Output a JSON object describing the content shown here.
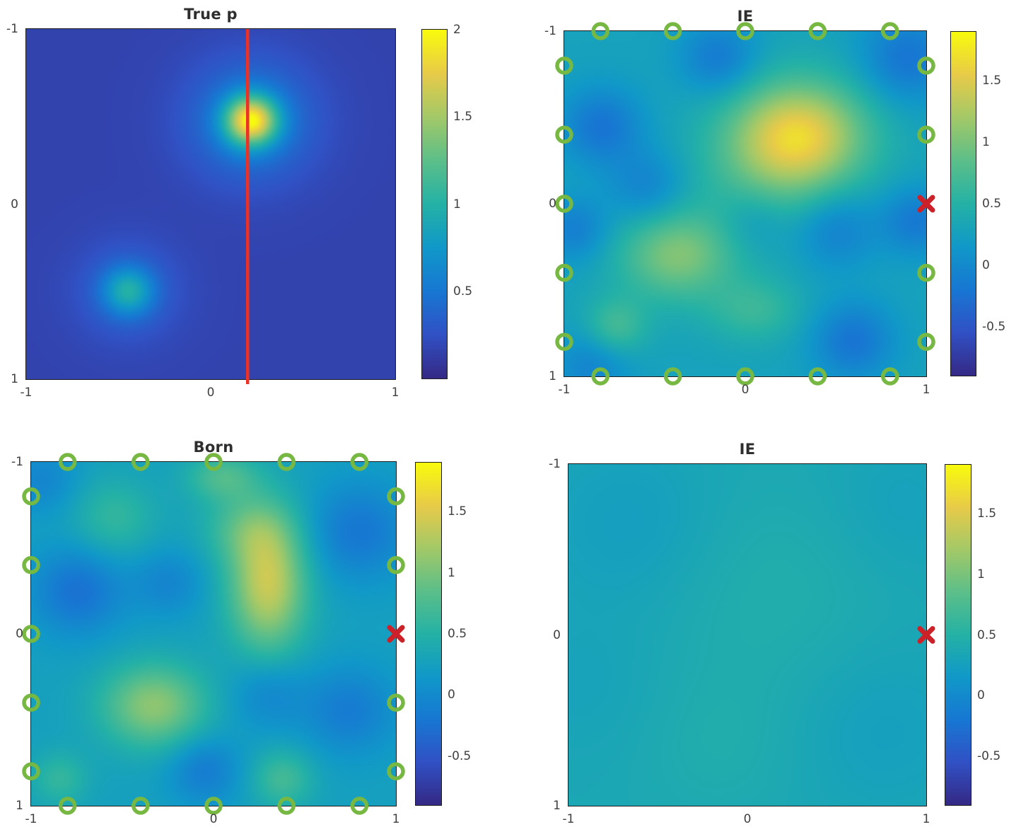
{
  "figure": {
    "background_color": "#ffffff",
    "text_color": "#3f3f3f",
    "title_color": "#2e2e2e"
  },
  "colormap": {
    "name": "parula-like",
    "stops": [
      [
        0.0,
        "#352a87"
      ],
      [
        0.125,
        "#3152c5"
      ],
      [
        0.25,
        "#1878d3"
      ],
      [
        0.375,
        "#1199c9"
      ],
      [
        0.5,
        "#25b2a6"
      ],
      [
        0.625,
        "#5cbf8a"
      ],
      [
        0.75,
        "#a3c969"
      ],
      [
        0.875,
        "#e8cb4a"
      ],
      [
        1.0,
        "#f9fb0e"
      ]
    ]
  },
  "markers": {
    "sensor_color": "#77b843",
    "source_color": "#cc2128",
    "line_color": "#ec3125"
  },
  "chart_data": [
    {
      "type": "heatmap",
      "title": "True p",
      "x_range": [
        -1,
        1
      ],
      "y_range_top_to_bottom": [
        -1,
        1
      ],
      "x_tick_labels": [
        "-1",
        "0",
        "1"
      ],
      "y_tick_labels": [
        "-1",
        "0",
        "1"
      ],
      "value_range": [
        0,
        2
      ],
      "colorbar_ticks": [
        {
          "label": "2",
          "value": 2
        },
        {
          "label": "1.5",
          "value": 1.5
        },
        {
          "label": "1",
          "value": 1
        },
        {
          "label": "0.5",
          "value": 0.5
        }
      ],
      "background_value": 0.16,
      "blobs": [
        {
          "x": 0.22,
          "y": -0.48,
          "s": 0.1,
          "amp": 1.45
        },
        {
          "x": 0.22,
          "y": -0.48,
          "s": 0.24,
          "amp": 0.42
        },
        {
          "x": -0.45,
          "y": 0.5,
          "s": 0.095,
          "amp": 0.62
        },
        {
          "x": -0.45,
          "y": 0.5,
          "s": 0.2,
          "amp": 0.22
        }
      ],
      "red_line_x": 0.2,
      "sensors": [],
      "source_marker": null
    },
    {
      "type": "heatmap",
      "title": "IE",
      "x_range": [
        -1,
        1
      ],
      "y_range_top_to_bottom": [
        -1,
        1
      ],
      "x_tick_labels": [
        "-1",
        "0",
        "1"
      ],
      "y_tick_labels": [
        "-1",
        "0",
        "1"
      ],
      "value_range": [
        -0.9,
        1.9
      ],
      "colorbar_ticks": [
        {
          "label": "1.5",
          "value": 1.5
        },
        {
          "label": "1",
          "value": 1
        },
        {
          "label": "0.5",
          "value": 0.5
        },
        {
          "label": "0",
          "value": 0
        },
        {
          "label": "-0.5",
          "value": -0.5
        }
      ],
      "background_value": 0.28,
      "blobs": [
        {
          "x": 0.3,
          "y": -0.4,
          "sx": 0.26,
          "sy": 0.22,
          "amp": 1.25
        },
        {
          "x": 0.1,
          "y": -0.15,
          "s": 0.28,
          "amp": 0.3
        },
        {
          "x": -0.38,
          "y": 0.3,
          "sx": 0.22,
          "sy": 0.18,
          "amp": 0.75
        },
        {
          "x": -0.72,
          "y": 0.72,
          "s": 0.12,
          "amp": 0.45
        },
        {
          "x": 0.05,
          "y": 0.62,
          "sx": 0.18,
          "sy": 0.13,
          "amp": 0.35
        },
        {
          "x": -0.8,
          "y": -0.45,
          "s": 0.16,
          "amp": -0.5
        },
        {
          "x": -0.15,
          "y": -0.85,
          "s": 0.15,
          "amp": -0.45
        },
        {
          "x": 0.9,
          "y": -0.85,
          "s": 0.18,
          "amp": -0.5
        },
        {
          "x": 0.95,
          "y": 0.1,
          "s": 0.14,
          "amp": -0.45
        },
        {
          "x": 0.6,
          "y": 0.8,
          "s": 0.16,
          "amp": -0.5
        },
        {
          "x": -0.95,
          "y": 0.15,
          "s": 0.13,
          "amp": -0.4
        },
        {
          "x": -0.55,
          "y": -0.1,
          "s": 0.15,
          "amp": -0.35
        },
        {
          "x": 0.5,
          "y": 0.15,
          "s": 0.16,
          "amp": -0.4
        },
        {
          "x": -0.85,
          "y": 0.95,
          "s": 0.15,
          "amp": -0.35
        },
        {
          "x": 0.05,
          "y": 0.1,
          "s": 0.14,
          "amp": -0.25
        }
      ],
      "red_line_x": null,
      "sensors": [
        [
          -0.8,
          -1
        ],
        [
          -0.4,
          -1
        ],
        [
          0,
          -1
        ],
        [
          0.4,
          -1
        ],
        [
          0.8,
          -1
        ],
        [
          -0.8,
          1
        ],
        [
          -0.4,
          1
        ],
        [
          0,
          1
        ],
        [
          0.4,
          1
        ],
        [
          0.8,
          1
        ],
        [
          -1,
          -0.8
        ],
        [
          -1,
          -0.4
        ],
        [
          -1,
          0
        ],
        [
          -1,
          0.4
        ],
        [
          -1,
          0.8
        ],
        [
          1,
          -0.8
        ],
        [
          1,
          -0.4
        ],
        [
          1,
          0.4
        ],
        [
          1,
          0.8
        ]
      ],
      "source_marker": {
        "x": 1,
        "y": 0
      }
    },
    {
      "type": "heatmap",
      "title": "Born",
      "x_range": [
        -1,
        1
      ],
      "y_range_top_to_bottom": [
        -1,
        1
      ],
      "x_tick_labels": [
        "-1",
        "0",
        "1"
      ],
      "y_tick_labels": [
        "-1",
        "0",
        "1"
      ],
      "value_range": [
        -0.9,
        1.9
      ],
      "colorbar_ticks": [
        {
          "label": "1.5",
          "value": 1.5
        },
        {
          "label": "1",
          "value": 1
        },
        {
          "label": "0.5",
          "value": 0.5
        },
        {
          "label": "0",
          "value": 0
        },
        {
          "label": "-0.5",
          "value": -0.5
        }
      ],
      "background_value": 0.25,
      "blobs": [
        {
          "x": 0.3,
          "y": -0.3,
          "sx": 0.15,
          "sy": 0.28,
          "amp": 1.15
        },
        {
          "x": 0.18,
          "y": -0.62,
          "sx": 0.17,
          "sy": 0.14,
          "amp": 0.4
        },
        {
          "x": -0.33,
          "y": 0.42,
          "sx": 0.2,
          "sy": 0.17,
          "amp": 0.85
        },
        {
          "x": 0.05,
          "y": -0.92,
          "sx": 0.14,
          "sy": 0.1,
          "amp": 0.5
        },
        {
          "x": -0.55,
          "y": -0.68,
          "s": 0.16,
          "amp": 0.35
        },
        {
          "x": 0.38,
          "y": 0.85,
          "s": 0.12,
          "amp": 0.45
        },
        {
          "x": -0.85,
          "y": 0.85,
          "s": 0.11,
          "amp": 0.35
        },
        {
          "x": -0.75,
          "y": -0.25,
          "s": 0.18,
          "amp": -0.5
        },
        {
          "x": -0.25,
          "y": -0.3,
          "s": 0.14,
          "amp": -0.3
        },
        {
          "x": 0.8,
          "y": -0.6,
          "s": 0.2,
          "amp": -0.45
        },
        {
          "x": 0.75,
          "y": 0.45,
          "s": 0.18,
          "amp": -0.4
        },
        {
          "x": -0.05,
          "y": 0.8,
          "s": 0.14,
          "amp": -0.4
        },
        {
          "x": 0.3,
          "y": 0.35,
          "s": 0.15,
          "amp": -0.3
        },
        {
          "x": -0.95,
          "y": -0.9,
          "s": 0.14,
          "amp": -0.3
        }
      ],
      "red_line_x": null,
      "sensors": [
        [
          -0.8,
          -1
        ],
        [
          -0.4,
          -1
        ],
        [
          0,
          -1
        ],
        [
          0.4,
          -1
        ],
        [
          0.8,
          -1
        ],
        [
          -0.8,
          1
        ],
        [
          -0.4,
          1
        ],
        [
          0,
          1
        ],
        [
          0.4,
          1
        ],
        [
          0.8,
          1
        ],
        [
          -1,
          -0.8
        ],
        [
          -1,
          -0.4
        ],
        [
          -1,
          0
        ],
        [
          -1,
          0.4
        ],
        [
          -1,
          0.8
        ],
        [
          1,
          -0.8
        ],
        [
          1,
          -0.4
        ],
        [
          1,
          0.4
        ],
        [
          1,
          0.8
        ]
      ],
      "source_marker": {
        "x": 1,
        "y": 0
      }
    },
    {
      "type": "heatmap",
      "title": "IE",
      "x_range": [
        -1,
        1
      ],
      "y_range_top_to_bottom": [
        -1,
        1
      ],
      "x_tick_labels": [
        "-1",
        "0",
        "1"
      ],
      "y_tick_labels": [
        "-1",
        "0",
        "1"
      ],
      "value_range": [
        -0.9,
        1.9
      ],
      "colorbar_ticks": [
        {
          "label": "1.5",
          "value": 1.5
        },
        {
          "label": "1",
          "value": 1
        },
        {
          "label": "0.5",
          "value": 0.5
        },
        {
          "label": "0",
          "value": 0
        },
        {
          "label": "-0.5",
          "value": -0.5
        }
      ],
      "background_value": 0.35,
      "blobs": [
        {
          "x": 0.15,
          "y": -0.25,
          "s": 0.45,
          "amp": 0.1
        },
        {
          "x": -0.65,
          "y": -0.65,
          "s": 0.35,
          "amp": -0.12
        },
        {
          "x": 0.75,
          "y": 0.55,
          "s": 0.35,
          "amp": -0.1
        },
        {
          "x": -0.15,
          "y": 0.65,
          "s": 0.32,
          "amp": 0.08
        },
        {
          "x": 0.85,
          "y": -0.75,
          "s": 0.3,
          "amp": -0.08
        },
        {
          "x": -0.9,
          "y": 0.3,
          "s": 0.3,
          "amp": -0.06
        }
      ],
      "red_line_x": null,
      "sensors": [],
      "source_marker": {
        "x": 1,
        "y": 0
      }
    }
  ]
}
